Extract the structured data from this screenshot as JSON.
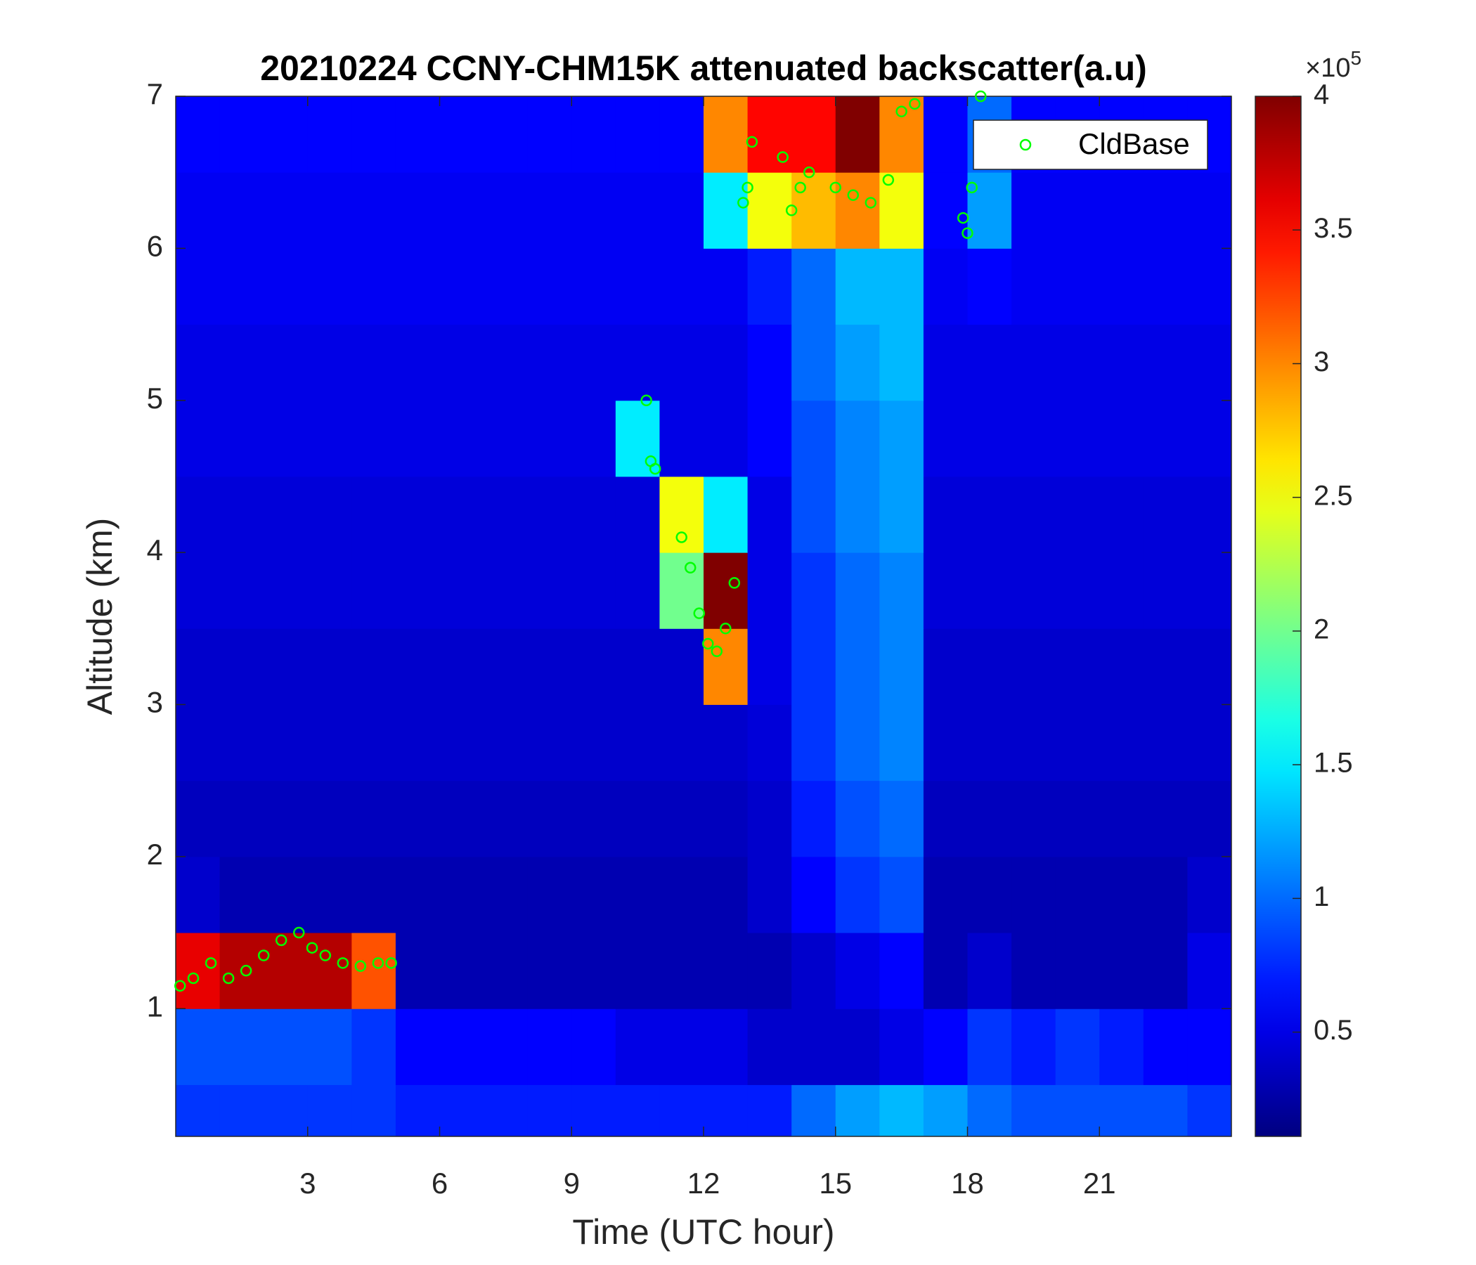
{
  "chart_data": {
    "type": "heatmap",
    "title": "20210224 CCNY-CHM15K attenuated backscatter(a.u)",
    "xlabel": "Time (UTC hour)",
    "ylabel": "Altitude (km)",
    "xlim": [
      0,
      24
    ],
    "xticks": [
      3,
      6,
      9,
      12,
      15,
      18,
      21
    ],
    "ylim": [
      0.16,
      7
    ],
    "yticks": [
      1,
      2,
      3,
      4,
      5,
      6,
      7
    ],
    "colormap": "jet",
    "clim": [
      0.11,
      4
    ],
    "cticks": [
      0.5,
      1,
      1.5,
      2,
      2.5,
      3,
      3.5,
      4
    ],
    "colorbar_scale": {
      "base": "×10",
      "exponent": "5"
    },
    "x_edges": [
      0,
      1,
      2,
      3,
      4,
      5,
      6,
      7,
      8,
      9,
      10,
      11,
      12,
      13,
      14,
      15,
      16,
      17,
      18,
      19,
      20,
      21,
      22,
      23,
      24
    ],
    "y_edges": [
      0.16,
      0.5,
      1,
      1.5,
      2,
      2.5,
      3,
      3.5,
      4,
      4.5,
      5,
      5.5,
      6,
      6.5,
      7
    ],
    "z": [
      [
        0.8,
        0.8,
        0.8,
        0.8,
        0.8,
        0.7,
        0.7,
        0.7,
        0.7,
        0.7,
        0.7,
        0.7,
        0.7,
        0.7,
        1.0,
        1.2,
        1.3,
        1.2,
        1.0,
        0.9,
        0.9,
        0.9,
        0.9,
        0.8
      ],
      [
        0.9,
        0.9,
        0.9,
        0.9,
        0.8,
        0.6,
        0.6,
        0.6,
        0.6,
        0.6,
        0.5,
        0.5,
        0.5,
        0.4,
        0.4,
        0.4,
        0.5,
        0.6,
        0.8,
        0.7,
        0.8,
        0.7,
        0.6,
        0.6
      ],
      [
        3.6,
        3.8,
        3.8,
        3.8,
        3.2,
        0.3,
        0.3,
        0.3,
        0.3,
        0.3,
        0.3,
        0.3,
        0.3,
        0.3,
        0.4,
        0.5,
        0.6,
        0.3,
        0.4,
        0.3,
        0.3,
        0.3,
        0.3,
        0.5
      ],
      [
        0.4,
        0.3,
        0.3,
        0.3,
        0.3,
        0.3,
        0.3,
        0.3,
        0.3,
        0.3,
        0.3,
        0.3,
        0.3,
        0.4,
        0.6,
        0.8,
        0.9,
        0.3,
        0.3,
        0.3,
        0.3,
        0.3,
        0.3,
        0.4
      ],
      [
        0.35,
        0.35,
        0.35,
        0.35,
        0.35,
        0.35,
        0.35,
        0.35,
        0.35,
        0.35,
        0.35,
        0.35,
        0.35,
        0.4,
        0.7,
        0.9,
        1.0,
        0.35,
        0.35,
        0.35,
        0.35,
        0.35,
        0.35,
        0.35
      ],
      [
        0.4,
        0.4,
        0.4,
        0.4,
        0.4,
        0.4,
        0.4,
        0.4,
        0.4,
        0.4,
        0.4,
        0.4,
        0.4,
        0.45,
        0.8,
        1.0,
        1.1,
        0.4,
        0.4,
        0.4,
        0.4,
        0.4,
        0.4,
        0.4
      ],
      [
        0.4,
        0.4,
        0.4,
        0.4,
        0.4,
        0.4,
        0.4,
        0.4,
        0.4,
        0.4,
        0.4,
        0.4,
        3.0,
        0.5,
        0.8,
        1.0,
        1.1,
        0.4,
        0.4,
        0.4,
        0.4,
        0.4,
        0.4,
        0.4
      ],
      [
        0.45,
        0.45,
        0.45,
        0.45,
        0.45,
        0.45,
        0.45,
        0.45,
        0.45,
        0.45,
        0.45,
        2.0,
        4.0,
        0.5,
        0.8,
        1.0,
        1.1,
        0.45,
        0.45,
        0.45,
        0.45,
        0.45,
        0.45,
        0.45
      ],
      [
        0.45,
        0.45,
        0.45,
        0.45,
        0.45,
        0.45,
        0.45,
        0.45,
        0.45,
        0.45,
        0.45,
        2.5,
        1.5,
        0.5,
        0.9,
        1.1,
        1.2,
        0.45,
        0.45,
        0.45,
        0.45,
        0.45,
        0.45,
        0.45
      ],
      [
        0.5,
        0.5,
        0.5,
        0.5,
        0.5,
        0.5,
        0.5,
        0.5,
        0.5,
        0.5,
        1.5,
        0.5,
        0.5,
        0.6,
        0.9,
        1.1,
        1.2,
        0.5,
        0.5,
        0.5,
        0.5,
        0.5,
        0.5,
        0.5
      ],
      [
        0.5,
        0.5,
        0.5,
        0.5,
        0.5,
        0.5,
        0.5,
        0.5,
        0.5,
        0.5,
        0.5,
        0.5,
        0.5,
        0.6,
        1.0,
        1.2,
        1.3,
        0.5,
        0.5,
        0.5,
        0.5,
        0.5,
        0.5,
        0.5
      ],
      [
        0.55,
        0.55,
        0.55,
        0.55,
        0.55,
        0.55,
        0.55,
        0.55,
        0.55,
        0.55,
        0.55,
        0.55,
        0.55,
        0.7,
        1.0,
        1.3,
        1.3,
        0.55,
        0.6,
        0.55,
        0.55,
        0.55,
        0.55,
        0.55
      ],
      [
        0.55,
        0.55,
        0.55,
        0.55,
        0.55,
        0.55,
        0.55,
        0.55,
        0.55,
        0.55,
        0.55,
        0.55,
        1.5,
        2.5,
        2.8,
        3.0,
        2.5,
        0.6,
        1.2,
        0.55,
        0.55,
        0.55,
        0.55,
        0.55
      ],
      [
        0.6,
        0.6,
        0.6,
        0.6,
        0.6,
        0.6,
        0.6,
        0.6,
        0.6,
        0.6,
        0.6,
        0.6,
        3.0,
        3.5,
        3.5,
        4.0,
        3.0,
        0.6,
        1.0,
        0.6,
        0.6,
        0.6,
        0.6,
        0.6
      ]
    ],
    "series": [
      {
        "name": "CldBase",
        "type": "scatter",
        "color": "#00ff00",
        "x": [
          0.1,
          0.4,
          0.8,
          1.2,
          1.6,
          2.0,
          2.4,
          2.8,
          3.1,
          3.4,
          3.8,
          4.2,
          4.6,
          4.9,
          10.7,
          10.8,
          10.9,
          11.5,
          11.7,
          11.9,
          12.1,
          12.3,
          12.5,
          12.7,
          12.9,
          13.0,
          13.1,
          13.8,
          14.0,
          14.2,
          14.4,
          15.0,
          15.4,
          15.8,
          16.2,
          16.5,
          16.8,
          17.9,
          18.0,
          18.1,
          18.3
        ],
        "y": [
          1.15,
          1.2,
          1.3,
          1.2,
          1.25,
          1.35,
          1.45,
          1.5,
          1.4,
          1.35,
          1.3,
          1.28,
          1.3,
          1.3,
          5.0,
          4.6,
          4.55,
          4.1,
          3.9,
          3.6,
          3.4,
          3.35,
          3.5,
          3.8,
          6.3,
          6.4,
          6.7,
          6.6,
          6.25,
          6.4,
          6.5,
          6.4,
          6.35,
          6.3,
          6.45,
          6.9,
          6.95,
          6.2,
          6.1,
          6.4,
          7.0
        ]
      }
    ],
    "legend": "northeast"
  }
}
